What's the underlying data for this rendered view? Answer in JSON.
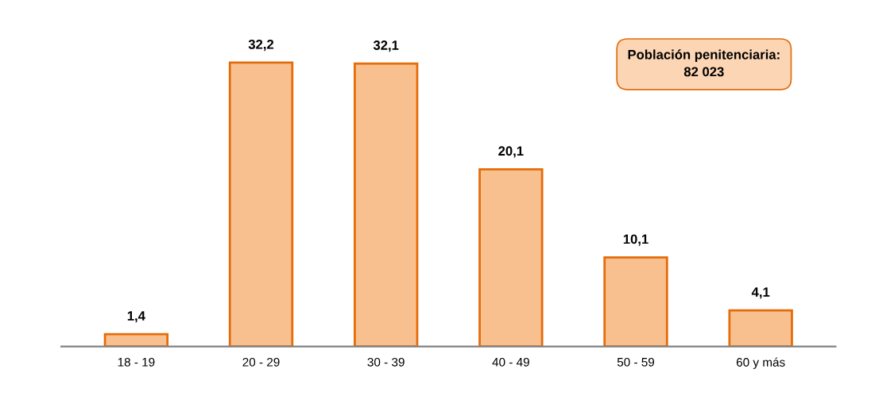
{
  "chart_data": {
    "type": "bar",
    "categories": [
      "18 - 19",
      "20 - 29",
      "30 - 39",
      "40 - 49",
      "50 - 59",
      "60 y más"
    ],
    "values": [
      1.4,
      32.2,
      32.1,
      20.1,
      10.1,
      4.1
    ],
    "value_labels": [
      "1,4",
      "32,2",
      "32,1",
      "20,1",
      "10,1",
      "4,1"
    ],
    "color": "#f9c08f",
    "annotations": [
      "Población penitenciaria:\n82 023"
    ],
    "grid": false
  }
}
